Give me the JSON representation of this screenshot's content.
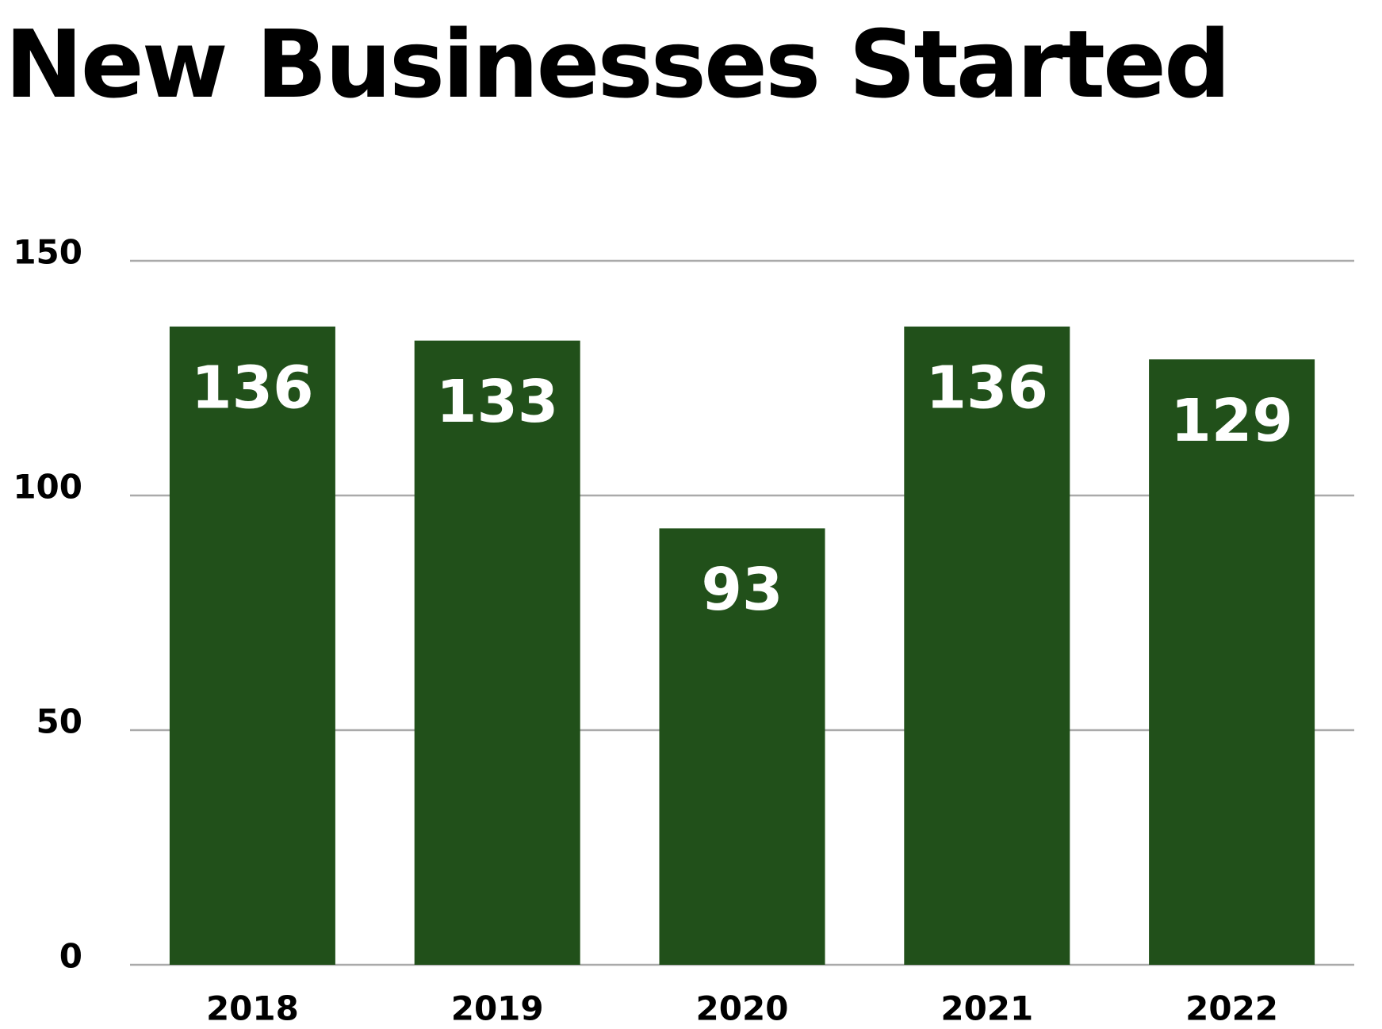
{
  "chart_data": {
    "type": "bar",
    "title": "New Businesses Started",
    "categories": [
      "2018",
      "2019",
      "2020",
      "2021",
      "2022"
    ],
    "values": [
      136,
      133,
      93,
      136,
      129
    ],
    "color": "#21501a",
    "ylim": [
      0,
      150
    ],
    "yticks": [
      0,
      50,
      100,
      150
    ],
    "grid": true
  }
}
